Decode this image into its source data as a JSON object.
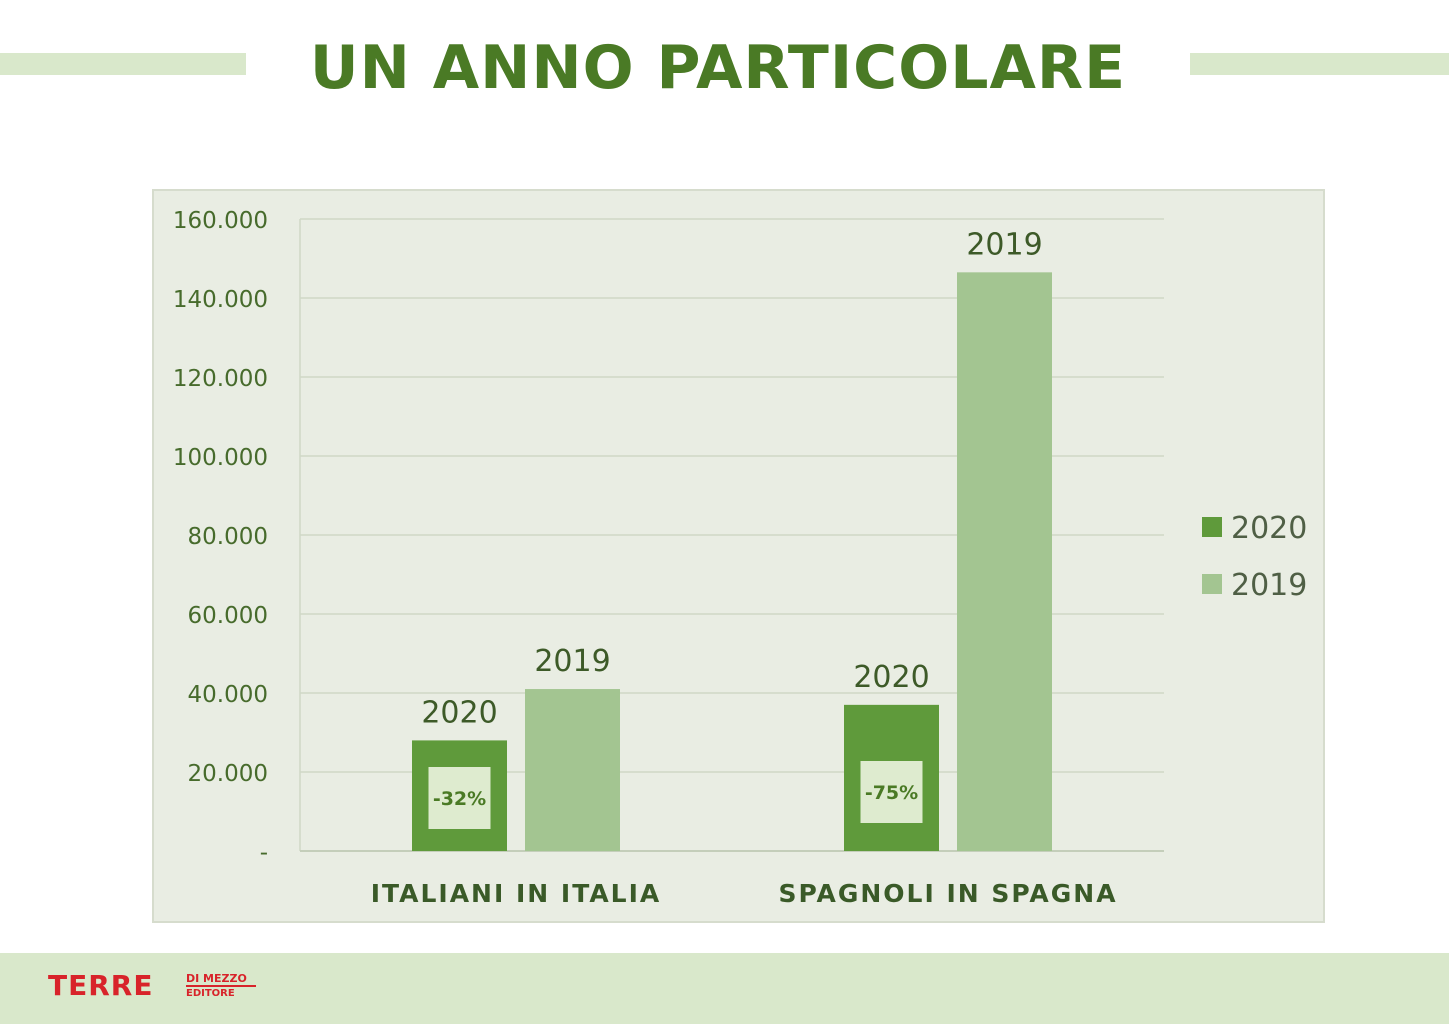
{
  "page": {
    "title": "UN ANNO PARTICOLARE"
  },
  "colors": {
    "title": "#4a7a25",
    "bar_2020": "#5f9a3b",
    "bar_2019": "#a3c591",
    "axis_text": "#476b2c",
    "panel_bg": "#e9ede3",
    "decor": "#d9e8cb",
    "logo": "#d8232a"
  },
  "logo": {
    "main": "TERRE",
    "line1": "DI MEZZO",
    "line2": "EDITORE"
  },
  "chart_data": {
    "type": "bar",
    "categories": [
      "ITALIANI IN ITALIA",
      "SPAGNOLI IN SPAGNA"
    ],
    "series": [
      {
        "name": "2020",
        "values": [
          28000,
          37000
        ],
        "color": "#5f9a3b"
      },
      {
        "name": "2019",
        "values": [
          41000,
          146500
        ],
        "color": "#a3c591"
      }
    ],
    "bar_labels": [
      "2020",
      "2019"
    ],
    "change_labels": [
      "-32%",
      "-75%"
    ],
    "ylim": [
      0,
      160000
    ],
    "yticks": [
      0,
      20000,
      40000,
      60000,
      80000,
      100000,
      120000,
      140000,
      160000
    ],
    "ytick_labels": [
      "-",
      "20.000",
      "40.000",
      "60.000",
      "80.000",
      "100.000",
      "120.000",
      "140.000",
      "160.000"
    ],
    "grid": true,
    "legend": {
      "position": "right",
      "entries": [
        "2020",
        "2019"
      ]
    },
    "title": "",
    "xlabel": "",
    "ylabel": ""
  }
}
